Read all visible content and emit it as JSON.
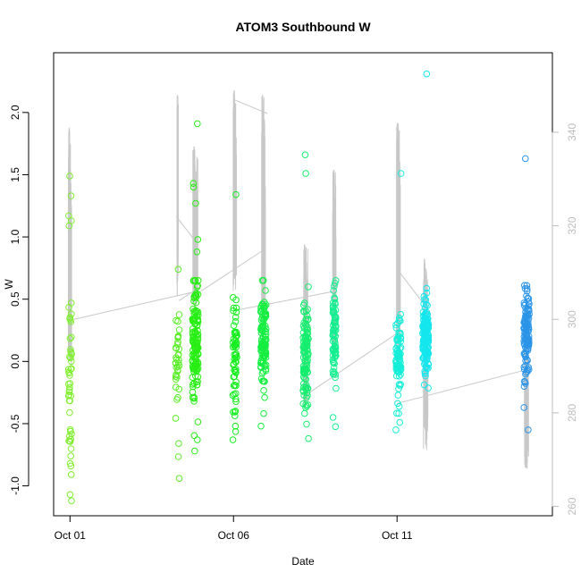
{
  "chart_data": {
    "type": "scatter",
    "title": "ATOM3 Southbound W",
    "xlabel": "Date",
    "ylabel": "W",
    "x_axis": {
      "type": "date",
      "range": [
        "2023-09-30T12:00",
        "2023-10-15T18:00"
      ],
      "ticks": [
        {
          "date": "2023-10-01T00:00",
          "label": "Oct 01"
        },
        {
          "date": "2023-10-06T00:00",
          "label": "Oct 06"
        },
        {
          "date": "2023-10-11T00:00",
          "label": "Oct 11"
        }
      ]
    },
    "y_axis_left": {
      "range": [
        -1.24,
        2.48
      ],
      "ticks": [
        -1.0,
        -0.5,
        0.0,
        0.5,
        1.0,
        1.5,
        2.0
      ],
      "tick_labels": [
        "-1.0",
        "-0.5",
        "0.0",
        "0.5",
        "1.0",
        "1.5",
        "2.0"
      ]
    },
    "y_axis_right": {
      "range": [
        258,
        357
      ],
      "ticks": [
        260,
        280,
        300,
        320,
        340
      ],
      "tick_labels": [
        "260",
        "280",
        "300",
        "320",
        "340"
      ],
      "color": "#bdbdbd"
    },
    "grid": false,
    "legend": "none",
    "colors": {
      "line_series": "#c8c8c8"
    },
    "series": [
      {
        "marker": "open-circle",
        "axis": "left",
        "groups": [
          {
            "center": "2023-10-01T00:00",
            "spread_hours": 1.2,
            "n": 45,
            "mean": -0.15,
            "sd": 0.45,
            "color": "#80ef30",
            "extra_y": [
              1.49,
              1.33,
              1.17,
              1.13,
              1.09,
              0.47,
              -0.76,
              -0.82,
              -0.84,
              -1.07,
              -1.12
            ]
          },
          {
            "center": "2023-10-04T07:00",
            "spread_hours": 1.5,
            "n": 35,
            "mean": 0.0,
            "sd": 0.22,
            "color": "#5aee28",
            "extra_y": [
              0.74,
              -0.66,
              -0.94
            ]
          },
          {
            "center": "2023-10-04T20:00",
            "spread_hours": 2.2,
            "n": 150,
            "mean": 0.15,
            "sd": 0.22,
            "color": "#28ee14",
            "extra_y": [
              1.91,
              1.43,
              1.4,
              1.27,
              0.98,
              0.88,
              -0.63,
              -0.72
            ]
          },
          {
            "center": "2023-10-06T01:00",
            "spread_hours": 1.5,
            "n": 60,
            "mean": 0.0,
            "sd": 0.22,
            "color": "#14ee1e",
            "extra_y": [
              1.34,
              -0.63,
              -0.52
            ]
          },
          {
            "center": "2023-10-06T22:00",
            "spread_hours": 2.0,
            "n": 110,
            "mean": 0.15,
            "sd": 0.2,
            "color": "#14ee40",
            "extra_y": [
              0.57,
              -0.52
            ]
          },
          {
            "center": "2023-10-08T05:00",
            "spread_hours": 2.0,
            "n": 110,
            "mean": 0.05,
            "sd": 0.22,
            "color": "#14ee6e",
            "extra_y": [
              1.66,
              1.51,
              -0.62
            ]
          },
          {
            "center": "2023-10-09T02:00",
            "spread_hours": 1.2,
            "n": 80,
            "mean": 0.2,
            "sd": 0.18,
            "color": "#14ee90",
            "extra_y": [
              0.57,
              -0.45
            ]
          },
          {
            "center": "2023-10-11T01:00",
            "spread_hours": 2.0,
            "n": 80,
            "mean": 0.0,
            "sd": 0.2,
            "color": "#14eed8",
            "extra_y": [
              1.51,
              -0.49,
              -0.55
            ]
          },
          {
            "center": "2023-10-11T21:00",
            "spread_hours": 2.2,
            "n": 150,
            "mean": 0.2,
            "sd": 0.14,
            "color": "#14e6ee",
            "extra_y": [
              2.31,
              0.55
            ]
          },
          {
            "center": "2023-10-14T23:00",
            "spread_hours": 2.0,
            "n": 110,
            "mean": 0.2,
            "sd": 0.2,
            "color": "#2a94e8",
            "extra_y": [
              1.63,
              0.61,
              -0.37,
              -0.55
            ]
          }
        ]
      },
      {
        "marker": "line",
        "axis": "right",
        "color": "#c8c8c8",
        "burst_ranges": [
          {
            "center": "2023-10-01T00:00",
            "low": 289,
            "high": 341,
            "spread_hours": 1.2
          },
          {
            "center": "2023-10-04T07:00",
            "low": 305,
            "high": 348,
            "spread_hours": 0.5
          },
          {
            "center": "2023-10-04T20:00",
            "low": 301,
            "high": 337,
            "spread_hours": 1.8
          },
          {
            "center": "2023-10-06T01:00",
            "low": 306,
            "high": 349,
            "spread_hours": 1.2
          },
          {
            "center": "2023-10-06T22:00",
            "low": 297,
            "high": 348,
            "spread_hours": 1.4
          },
          {
            "center": "2023-10-08T05:00",
            "low": 281,
            "high": 316,
            "spread_hours": 1.5
          },
          {
            "center": "2023-10-09T02:00",
            "low": 292,
            "high": 332,
            "spread_hours": 1.2
          },
          {
            "center": "2023-10-11T01:00",
            "low": 291,
            "high": 342,
            "spread_hours": 1.4
          },
          {
            "center": "2023-10-11T21:00",
            "low": 272,
            "high": 313,
            "spread_hours": 1.6
          },
          {
            "center": "2023-10-14T23:00",
            "low": 268,
            "high": 302,
            "spread_hours": 1.5
          }
        ],
        "connectors": [
          {
            "x": [
              "2023-10-01T03:00",
              "2023-10-04T21:00"
            ],
            "y": [
              300,
              306
            ]
          },
          {
            "x": [
              "2023-10-04T06:00",
              "2023-10-04T22:00"
            ],
            "y": [
              322,
              316
            ]
          },
          {
            "x": [
              "2023-10-04T08:00",
              "2023-10-05T00:00"
            ],
            "y": [
              304,
              307
            ]
          },
          {
            "x": [
              "2023-10-05T00:00",
              "2023-10-06T23:00"
            ],
            "y": [
              306,
              315
            ]
          },
          {
            "x": [
              "2023-10-06T00:00",
              "2023-10-07T01:00"
            ],
            "y": [
              347,
              344
            ]
          },
          {
            "x": [
              "2023-10-06T03:00",
              "2023-10-09T02:00"
            ],
            "y": [
              302,
              306
            ]
          },
          {
            "x": [
              "2023-10-08T06:00",
              "2023-10-11T00:00"
            ],
            "y": [
              284,
              297
            ]
          },
          {
            "x": [
              "2023-10-11T02:00",
              "2023-10-11T23:00"
            ],
            "y": [
              310,
              302
            ]
          },
          {
            "x": [
              "2023-10-11T00:00",
              "2023-10-14T20:00"
            ],
            "y": [
              282,
              289
            ]
          }
        ]
      }
    ]
  }
}
